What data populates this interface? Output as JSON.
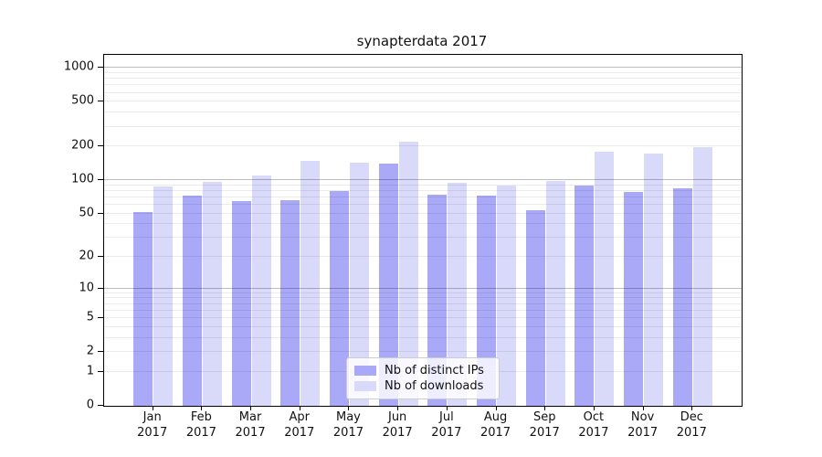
{
  "title": "synapterdata 2017",
  "colors": {
    "distinct_ips": "#a9a9f8",
    "downloads": "#d9d9fa",
    "major_grid": "#bebebe",
    "minor_grid": "#ebebeb",
    "axis": "#000000"
  },
  "legend": {
    "items": [
      {
        "label": "Nb of distinct IPs",
        "color": "#a9a9f8"
      },
      {
        "label": "Nb of downloads",
        "color": "#d9d9fa"
      }
    ]
  },
  "chart_data": {
    "type": "bar",
    "title": "synapterdata 2017",
    "categories": [
      "Jan 2017",
      "Feb 2017",
      "Mar 2017",
      "Apr 2017",
      "May 2017",
      "Jun 2017",
      "Jul 2017",
      "Aug 2017",
      "Sep 2017",
      "Oct 2017",
      "Nov 2017",
      "Dec 2017"
    ],
    "series": [
      {
        "name": "Nb of distinct IPs",
        "color": "#a9a9f8",
        "values": [
          52,
          72,
          65,
          66,
          80,
          140,
          74,
          72,
          54,
          90,
          78,
          84
        ]
      },
      {
        "name": "Nb of downloads",
        "color": "#d9d9fa",
        "values": [
          87,
          97,
          110,
          150,
          143,
          220,
          95,
          89,
          99,
          180,
          172,
          196
        ]
      }
    ],
    "xlabel": "",
    "ylabel": "",
    "yscale": "symlog-log1p",
    "yticks": [
      0,
      1,
      2,
      5,
      10,
      20,
      50,
      100,
      200,
      500,
      1000
    ],
    "ylim": [
      0,
      1300
    ],
    "grid": true,
    "legend_position": "lower center"
  }
}
